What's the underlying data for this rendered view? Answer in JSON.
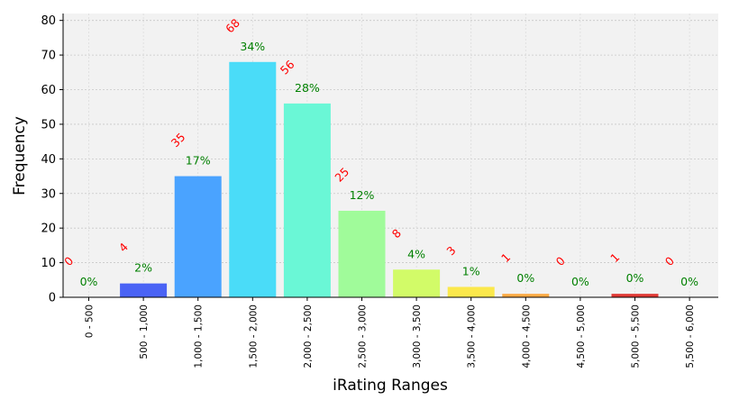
{
  "chart_data": {
    "type": "bar",
    "xlabel": "iRating Ranges",
    "ylabel": "Frequency",
    "ylim": [
      0,
      82
    ],
    "yticks": [
      0,
      10,
      20,
      30,
      40,
      50,
      60,
      70,
      80
    ],
    "grid": true,
    "categories": [
      "0 - 500",
      "500 - 1,000",
      "1,000 - 1,500",
      "1,500 - 2,000",
      "2,000 - 2,500",
      "2,500 - 3,000",
      "3,000 - 3,500",
      "3,500 - 4,000",
      "4,000 - 4,500",
      "4,500 - 5,000",
      "5,000 - 5,500",
      "5,500 - 6,000"
    ],
    "values": [
      0,
      4,
      35,
      68,
      56,
      25,
      8,
      3,
      1,
      0,
      1,
      0
    ],
    "count_labels": [
      "0",
      "4",
      "35",
      "68",
      "56",
      "25",
      "8",
      "3",
      "1",
      "0",
      "1",
      "0"
    ],
    "percent_labels": [
      "0%",
      "2%",
      "17%",
      "34%",
      "28%",
      "12%",
      "4%",
      "1%",
      "0%",
      "0%",
      "0%",
      "0%"
    ],
    "bar_colors": [
      "#5a2be0",
      "#4a63f5",
      "#4aa3ff",
      "#4adcf8",
      "#6af7d6",
      "#a0fb9a",
      "#d2fb68",
      "#fbe84c",
      "#ffaa44",
      "#ff6a35",
      "#e03a35",
      "#c81818"
    ],
    "count_label_color": "#ff0000",
    "percent_label_color": "#008000",
    "plot_background": "#f2f2f2"
  }
}
